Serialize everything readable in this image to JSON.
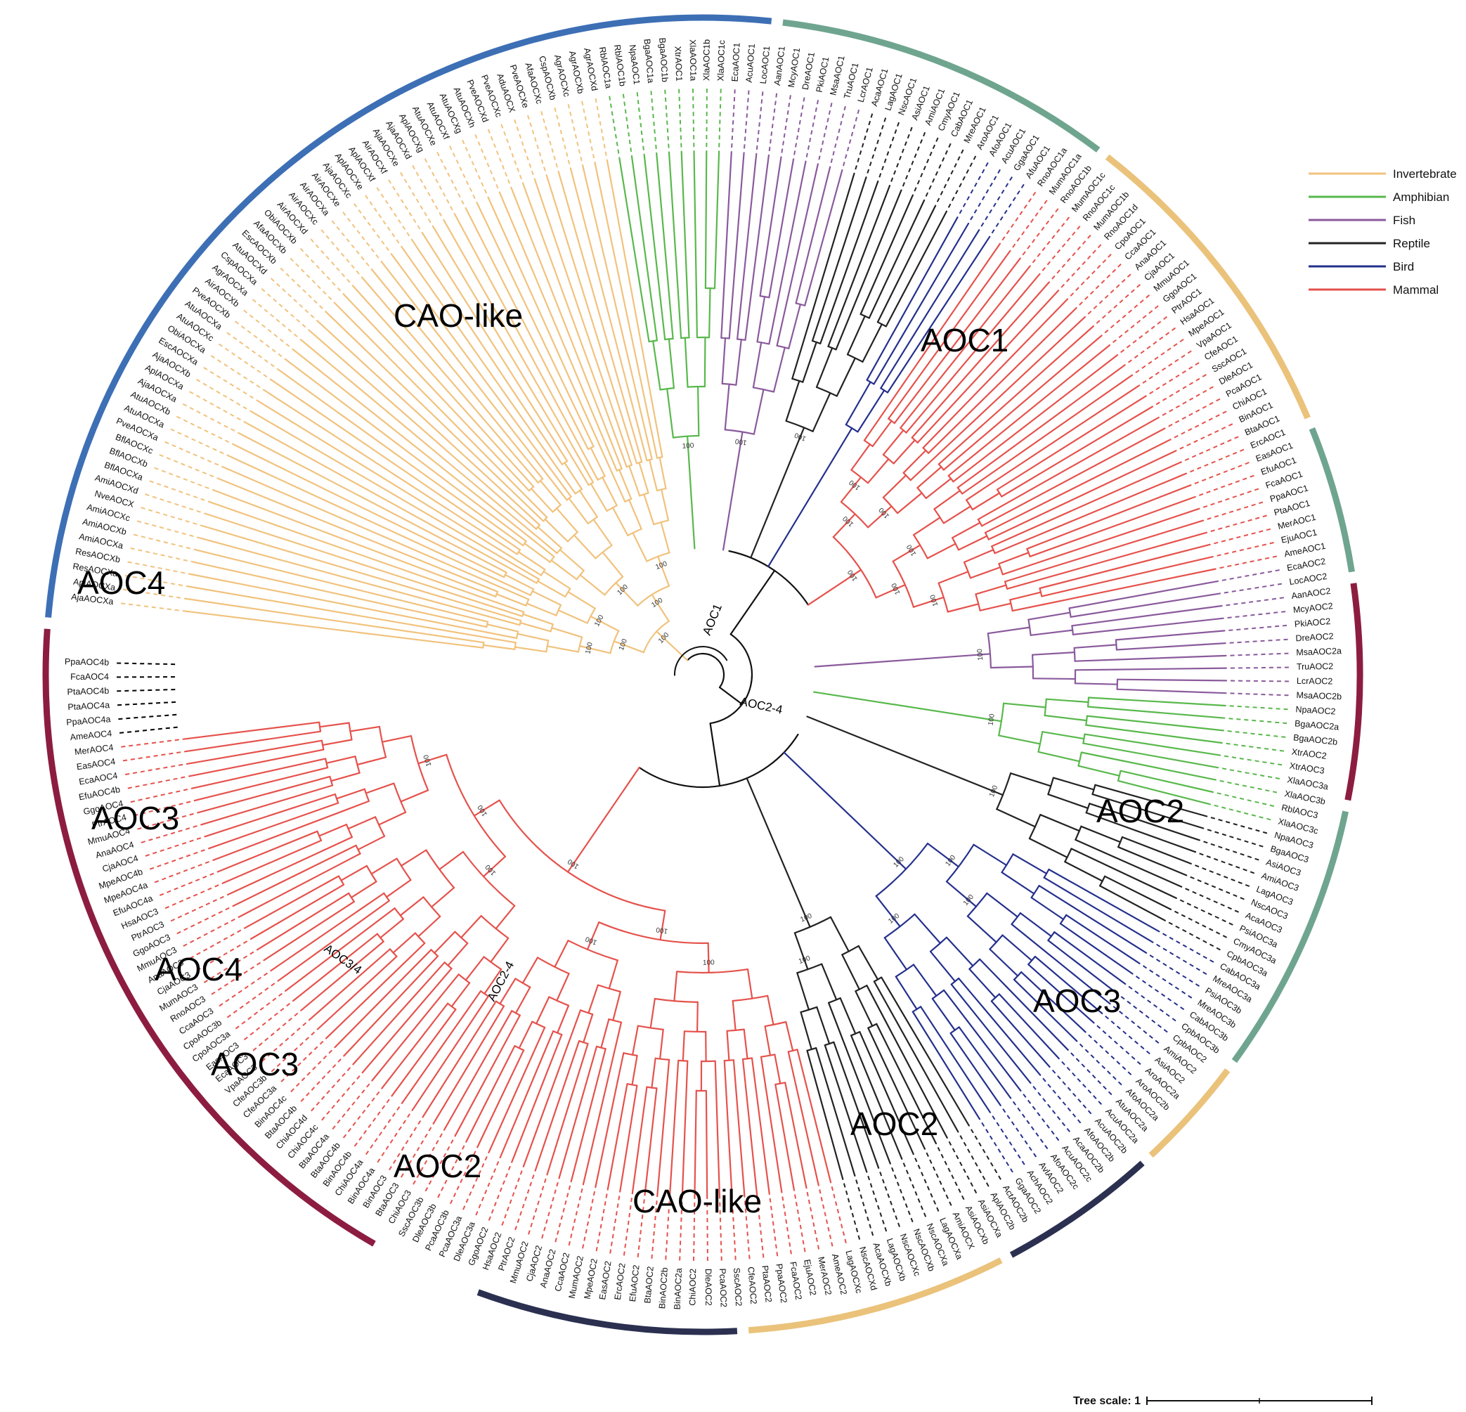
{
  "colors": {
    "invertebrate": "#F1C27D",
    "amphibian": "#59B84C",
    "fish": "#8A5A9C",
    "reptile": "#222222",
    "bird": "#24308C",
    "mammal": "#E5524C",
    "ring_cao": "#8C1D40",
    "ring_aoc1": "#3D6FB5",
    "ring_aoc2": "#6FA58F",
    "ring_aoc3": "#EAC27A",
    "ring_aoc4": "#2B3050"
  },
  "legend": [
    {
      "name": "Invertebrate",
      "color": "#F1C27D"
    },
    {
      "name": "Amphibian",
      "color": "#59B84C"
    },
    {
      "name": "Fish",
      "color": "#8A5A9C"
    },
    {
      "name": "Reptile",
      "color": "#222222"
    },
    {
      "name": "Bird",
      "color": "#24308C"
    },
    {
      "name": "Mammal",
      "color": "#E5524C"
    }
  ],
  "scale": {
    "label": "Tree scale: 1"
  },
  "branch_labels": {
    "aoc1": "AOC1",
    "aoc24_top": "AOC2-4",
    "aoc24_bottom": "AOC2-4",
    "aoc34": "AOC3/4"
  },
  "bootstrap_value": "100",
  "clades": [
    {
      "label": "CAO-like",
      "pos": "upper-left"
    },
    {
      "label": "AOC1",
      "pos": "upper-right"
    },
    {
      "label": "AOC2",
      "pos": "right"
    },
    {
      "label": "AOC3",
      "pos": "lower-right"
    },
    {
      "label": "AOC2",
      "pos": "lower-right-inner"
    },
    {
      "label": "CAO-like",
      "pos": "bottom"
    },
    {
      "label": "AOC2",
      "pos": "bottom-left"
    },
    {
      "label": "AOC3",
      "pos": "left-lower"
    },
    {
      "label": "AOC4",
      "pos": "left-lower"
    },
    {
      "label": "AOC3",
      "pos": "left"
    },
    {
      "label": "AOC4",
      "pos": "upper-left-side"
    }
  ],
  "rings": [
    {
      "clade": "CAO-like",
      "color": "#8C1D40",
      "start": 120,
      "end": 184
    },
    {
      "clade": "AOC1",
      "color": "#3D6FB5",
      "start": 185,
      "end": 276
    },
    {
      "clade": "AOC2",
      "color": "#6FA58F",
      "start": 277,
      "end": 307
    },
    {
      "clade": "AOC3",
      "color": "#EAC27A",
      "start": 308,
      "end": 337
    },
    {
      "clade": "AOC2",
      "color": "#6FA58F",
      "start": 338,
      "end": 351
    },
    {
      "clade": "CAO-like",
      "color": "#8C1D40",
      "start": 352,
      "end": 371
    },
    {
      "clade": "AOC2",
      "color": "#6FA58F",
      "start": 372,
      "end": 396
    },
    {
      "clade": "AOC3",
      "color": "#EAC27A",
      "start": 397,
      "end": 407
    },
    {
      "clade": "AOC4",
      "color": "#2B3050",
      "start": 408,
      "end": 422
    },
    {
      "clade": "AOC3",
      "color": "#EAC27A",
      "start": 423,
      "end": 446
    },
    {
      "clade": "AOC4",
      "color": "#2B3050",
      "start": 447,
      "end": 470
    }
  ],
  "leaves": [
    "AjaAOCXa",
    "AplAOCXa",
    "ResAOCXa",
    "ResAOCXb",
    "AmiAOCXa",
    "AmiAOCXb",
    "AmiAOCXc",
    "NveAOCX",
    "AmiAOCXd",
    "BflAOCXa",
    "BflAOCXb",
    "BflAOCXc",
    "PveAOCXa",
    "AtuAOCXa",
    "AtuAOCXb",
    "AjaAOCXa",
    "AplAOCXa",
    "AjaAOCXb",
    "EscAOCXa",
    "ObiAOCXa",
    "AtuAOCXc",
    "AtuAOCXa",
    "PveAOCXb",
    "AirAOCXb",
    "AgrAOCXa",
    "CspAOCXa",
    "AtuAOCXd",
    "EscAOCXb",
    "AfaAOCXb",
    "ObiAOCXb",
    "AirAOCXd",
    "AirAOCXc",
    "AirAOCXa",
    "AirAOCXe",
    "AjaAOCXc",
    "AplAOCXe",
    "AplAOCXf",
    "AirAOCXf",
    "AjaAOCXe",
    "AjaAOCXd",
    "AplAOCXg",
    "AtuAOCXe",
    "AtuAOCXf",
    "AtuAOCXg",
    "AtuAOCXh",
    "PveAOCXd",
    "PveAOCXc",
    "AduAOCX",
    "PveAOCXe",
    "AfaAOCXc",
    "CspAOCXb",
    "AgrAOCXc",
    "AgrAOCXb",
    "AgrAOCXd",
    "RblAOC1a",
    "RblAOC1b",
    "NpaAOC1",
    "BgaAOC1a",
    "BgaAOC1b",
    "XtrAOC1",
    "XlaAOC1a",
    "XlaAOC1b",
    "XlaAOC1c",
    "EcaAOC1",
    "AcuAOC1",
    "LocAOC1",
    "AanAOC1",
    "McyAOC1",
    "DreAOC1",
    "PkiAOC1",
    "MsaAOC1",
    "TruAOC1",
    "LcrAOC1",
    "AcaAOC1",
    "LagAOC1",
    "NscAOC1",
    "AsiAOC1",
    "AmiAOC1",
    "CmyAOC1",
    "CabAOC1",
    "MreAOC1",
    "AroAOC1",
    "AfoAOC1",
    "AcuAOC1",
    "GgaAOC1",
    "AfuAOC1",
    "RnoAOC1a",
    "MumAOC1a",
    "RnoAOC1b",
    "MumAOC1c",
    "RnoAOC1c",
    "MumAOC1b",
    "RnoAOC1d",
    "CpoAOC1",
    "CcaAOC1",
    "AnaAOC1",
    "CjaAOC1",
    "MmuAOC1",
    "GgoAOC1",
    "PtrAOC1",
    "HsaAOC1",
    "MpeAOC1",
    "VpaAOC1",
    "CfeAOC1",
    "SscAOC1",
    "DleAOC1",
    "PcaAOC1",
    "ChiAOC1",
    "BinAOC1",
    "BtaAOC1",
    "ErcAOC1",
    "EasAOC1",
    "EfuAOC1",
    "FcaAOC1",
    "PpaAOC1",
    "PtaAOC1",
    "MerAOC1",
    "EjuAOC1",
    "AmeAOC1",
    "EcaAOC2",
    "LocAOC2",
    "AanAOC2",
    "McyAOC2",
    "PkiAOC2",
    "DreAOC2",
    "MsaAOC2a",
    "TruAOC2",
    "LcrAOC2",
    "MsaAOC2b",
    "NpaAOC2",
    "BgaAOC2a",
    "BgaAOC2b",
    "XtrAOC2",
    "XtrAOC3",
    "XlaAOC3a",
    "XlaAOC3b",
    "RblAOC3",
    "XlaAOC3c",
    "NpaAOC3",
    "BgaAOC3",
    "AsiAOC3",
    "AmiAOC3",
    "LagAOC3",
    "NscAOC3",
    "AcaAOC3",
    "PsiAOC3a",
    "CmyAOC3a",
    "CpbAOC3a",
    "CabAOC3a",
    "MreAOC3a",
    "PsiAOC3b",
    "MreAOC3b",
    "CabAOC3b",
    "CpbAOC3b",
    "CpbAOC2",
    "AmiAOC2",
    "AsiAOC2",
    "AroAOC2a",
    "AroAOC2b",
    "AfoAOC2a",
    "AtuAOC2a",
    "AcuAOC2a",
    "AcuAOC2b",
    "AfoAOC2b",
    "AcaAOC2b",
    "AcuAOC2c",
    "AfoAOC2c",
    "AvlAOC2",
    "AchAOC2",
    "GgaAOC2",
    "ActAOC2b",
    "AplAOC2b",
    "AsiAOCXa",
    "AsiAOCXb",
    "AmiAOCX",
    "LagAOCXa",
    "NscAOCXa",
    "NscAOCXb",
    "NscAOCXc",
    "LagAOCXb",
    "AcaAOCXb",
    "NscAOCXd",
    "LagAOCXc",
    "AmeAOC2",
    "MerAOC2",
    "EjuAOC2",
    "FcaAOC2",
    "PpaAOC2",
    "PtaAOC2",
    "CfeAOC2",
    "SscAOC2",
    "PcaAOC2",
    "DleAOC2",
    "ChiAOC2",
    "BinAOC2a",
    "BinAOC2b",
    "BtaAOC2",
    "EfuAOC2",
    "ErcAOC2",
    "EasAOC2",
    "MpeAOC2",
    "MumAOC2",
    "CcaAOC2",
    "AnaAOC2",
    "CjaAOC2",
    "MmuAOC2",
    "PtrAOC2",
    "HsaAOC2",
    "GgoAOC2",
    "DleAOC3a",
    "PcaAOC3a",
    "PcaAOC3b",
    "DleAOC3b",
    "SscAOC3b",
    "ChiAOC3",
    "BtaAOC3",
    "BinAOC3",
    "BinAOC4a",
    "ChiAOC4a",
    "BinAOC4b",
    "BtaAOC4b",
    "BtaAOC4a",
    "ChiAOC4c",
    "ChiAOC4d",
    "BtaAOC4b",
    "BinAOC4c",
    "CfeAOC3a",
    "CfeAOC3b",
    "VpaAOC3",
    "EcaAOC3",
    "EasAOC3",
    "CpoAOC3a",
    "CpoAOC3b",
    "CcaAOC3",
    "RnoAOC3",
    "MumAOC3",
    "CjaAOC3",
    "AnaAOC3",
    "MmuAOC3",
    "GgoAOC3",
    "PtrAOC3",
    "HsaAOC3",
    "EfuAOC4a",
    "MpeAOC4a",
    "MpeAOC4b",
    "CjaAOC4",
    "AnaAOC4",
    "MmuAOC4",
    "PtrAOC4",
    "GgoAOC4",
    "EfuAOC4b",
    "EcaAOC4",
    "EasAOC4",
    "MerAOC4",
    "AmeAOC4",
    "PpaAOC4a",
    "PtaAOC4a",
    "PtaAOC4b",
    "FcaAOC4",
    "PpaAOC4b"
  ]
}
